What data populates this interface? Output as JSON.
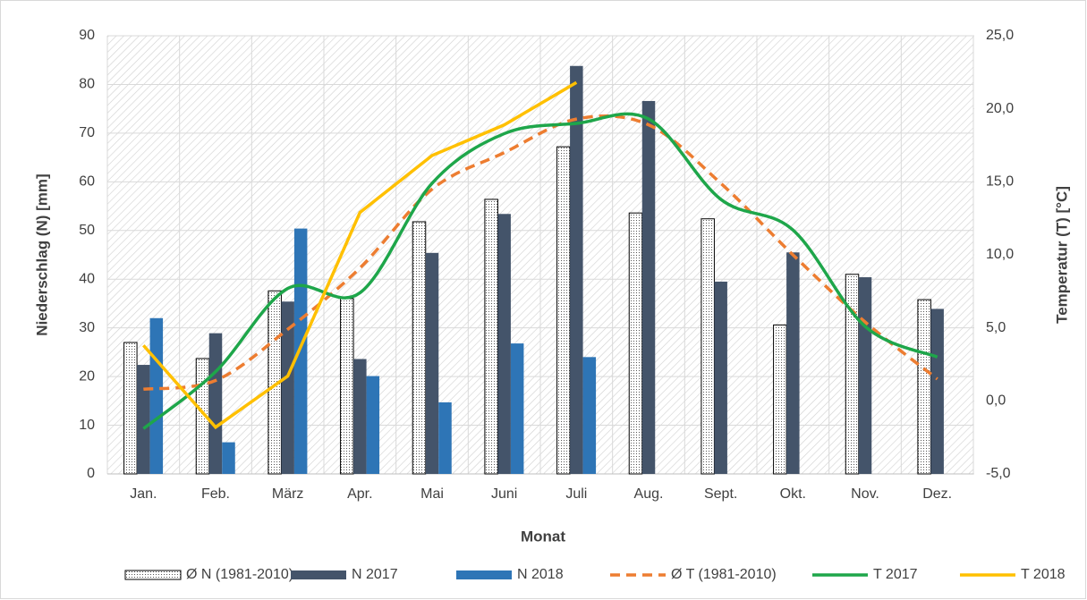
{
  "chart_data": {
    "type": "bar",
    "x_label": "Monat",
    "y_label": "Niederschlag (N) [mm]",
    "y2_label": "Temperatur (T) [°C]",
    "categories": [
      "Jan.",
      "Feb.",
      "März",
      "Apr.",
      "Mai",
      "Juni",
      "Juli",
      "Aug.",
      "Sept.",
      "Okt.",
      "Nov.",
      "Dez."
    ],
    "series": [
      {
        "name": "Ø N (1981-2010)",
        "type": "bar",
        "color": "#000000",
        "fill": "dotted",
        "values": [
          27,
          23.7,
          37.6,
          36,
          51.8,
          56.4,
          67.2,
          53.6,
          52.4,
          30.6,
          41,
          35.8
        ]
      },
      {
        "name": "N 2017",
        "type": "bar",
        "color": "#44546a",
        "values": [
          22.4,
          28.9,
          35.4,
          23.6,
          45.4,
          53.4,
          83.8,
          76.6,
          39.5,
          45.5,
          40.4,
          33.9
        ]
      },
      {
        "name": "N 2018",
        "type": "bar",
        "color": "#2e75b6",
        "values": [
          32,
          6.5,
          50.4,
          20.1,
          14.7,
          26.8,
          24,
          null,
          null,
          null,
          null,
          null
        ]
      },
      {
        "name": "Ø T (1981-2010)",
        "type": "line",
        "axis": "y2",
        "color": "#ed7d31",
        "dashed": true,
        "smooth": true,
        "values": [
          0.8,
          1.4,
          4.9,
          9.1,
          14.5,
          17.0,
          19.3,
          18.9,
          14.9,
          10.0,
          5.4,
          1.5
        ]
      },
      {
        "name": "T 2017",
        "type": "line",
        "axis": "y2",
        "color": "#1ea64a",
        "smooth": true,
        "values": [
          -1.9,
          2.0,
          7.7,
          7.4,
          14.9,
          18.3,
          19.0,
          19.3,
          13.8,
          11.7,
          5.1,
          3.0
        ]
      },
      {
        "name": "T 2018",
        "type": "line",
        "axis": "y2",
        "color": "#ffc000",
        "values": [
          3.8,
          -1.8,
          1.7,
          12.9,
          16.8,
          18.9,
          21.8,
          null,
          null,
          null,
          null,
          null
        ]
      }
    ],
    "ylim": [
      0,
      90
    ],
    "yticks": [
      0,
      10,
      20,
      30,
      40,
      50,
      60,
      70,
      80,
      90
    ],
    "y2lim": [
      -5,
      25
    ],
    "y2ticks": [
      {
        "value": -5,
        "label": "-5,0"
      },
      {
        "value": 0,
        "label": "0,0"
      },
      {
        "value": 5,
        "label": "5,0"
      },
      {
        "value": 10,
        "label": "10,0"
      },
      {
        "value": 15,
        "label": "15,0"
      },
      {
        "value": 20,
        "label": "20,0"
      },
      {
        "value": 25,
        "label": "25,0"
      }
    ],
    "grid": true,
    "legend": "bottom"
  }
}
